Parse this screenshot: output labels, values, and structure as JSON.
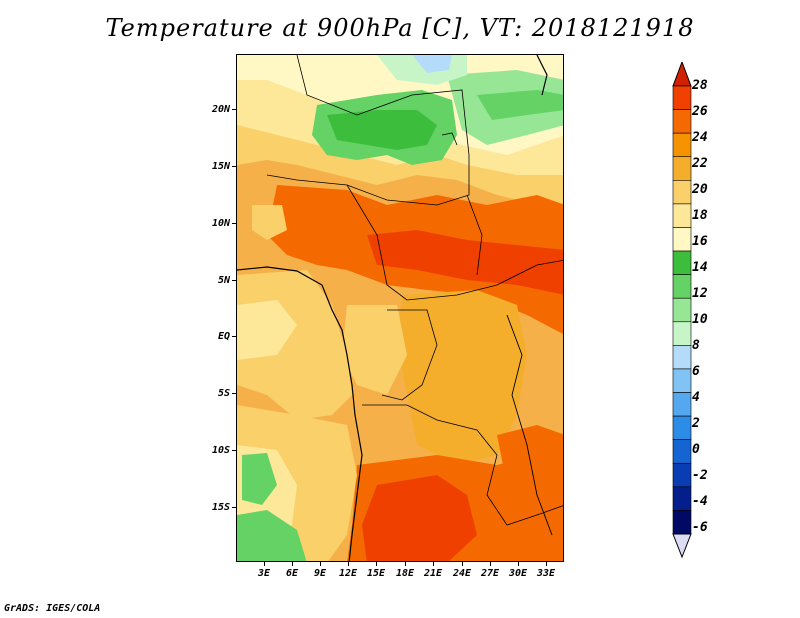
{
  "title": "Temperature at 900hPa [C], VT: 2018121918",
  "credit": "GrADS: IGES/COLA",
  "map": {
    "y_axis_labels": [
      "20N",
      "15N",
      "10N",
      "5N",
      "EQ",
      "5S",
      "10S",
      "15S"
    ],
    "x_axis_labels": [
      "3E",
      "6E",
      "9E",
      "12E",
      "15E",
      "18E",
      "21E",
      "24E",
      "27E",
      "30E",
      "33E"
    ]
  },
  "colorbar": {
    "labels": [
      "28",
      "26",
      "24",
      "22",
      "20",
      "18",
      "16",
      "14",
      "12",
      "10",
      "8",
      "6",
      "4",
      "2",
      "0",
      "-2",
      "-4",
      "-6"
    ],
    "colors": [
      "#f04000",
      "#f56a00",
      "#f59200",
      "#f5ae2c",
      "#fad06a",
      "#fde89a",
      "#fff8c4",
      "#3cbe3c",
      "#64d264",
      "#96e696",
      "#c8f5c8",
      "#b4dcfa",
      "#82c3f5",
      "#55a8f0",
      "#2d8ce6",
      "#1464d2",
      "#0a3cb4",
      "#041e8c",
      "#000a64"
    ],
    "top_color": "#d22000",
    "bottom_color": "#dcdcf5"
  }
}
